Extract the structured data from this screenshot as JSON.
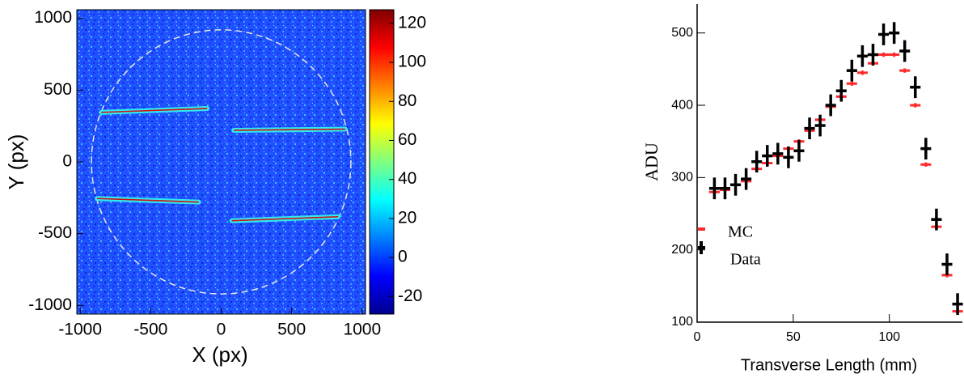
{
  "chart_data": [
    {
      "type": "heatmap",
      "xlabel": "X (px)",
      "ylabel": "Y (px)",
      "xlim": [
        -1024,
        1024
      ],
      "ylim": [
        -1060,
        1060
      ],
      "xticks": [
        -1000,
        -500,
        0,
        500,
        1000
      ],
      "yticks": [
        -1000,
        -500,
        0,
        500,
        1000
      ],
      "clim": [
        -29,
        127
      ],
      "cticks": [
        -20,
        0,
        20,
        40,
        60,
        80,
        100,
        120
      ],
      "circle_radius": 920,
      "tracks": [
        {
          "x": [
            -850,
            -100
          ],
          "y": [
            345,
            372
          ]
        },
        {
          "x": [
            90,
            880
          ],
          "y": [
            220,
            228
          ]
        },
        {
          "x": [
            -880,
            -160
          ],
          "y": [
            -255,
            -280
          ]
        },
        {
          "x": [
            75,
            830
          ],
          "y": [
            -410,
            -382
          ]
        }
      ]
    },
    {
      "type": "errorbar",
      "xlabel": "Transverse Length (mm)",
      "ylabel": "ADU",
      "xlim": [
        0,
        138
      ],
      "ylim": [
        100,
        540
      ],
      "xticks": [
        0,
        50,
        100
      ],
      "yticks": [
        100,
        200,
        300,
        400,
        500
      ],
      "x": [
        9,
        14.5,
        20,
        25.5,
        31,
        36.5,
        42,
        47.5,
        53,
        58.5,
        64,
        69.5,
        75,
        80.5,
        86,
        91.5,
        97,
        102.5,
        108,
        113.5,
        119,
        124.5,
        130,
        135.5
      ],
      "xerr": 2.75,
      "series": [
        {
          "name": "MC",
          "color": "#ff2a2a",
          "yerr": 3,
          "values": [
            280,
            283,
            290,
            295,
            312,
            320,
            330,
            340,
            350,
            365,
            380,
            398,
            412,
            430,
            445,
            458,
            470,
            470,
            448,
            400,
            318,
            232,
            165,
            115
          ]
        },
        {
          "name": "Data",
          "color": "#000000",
          "yerr": 15,
          "values": [
            285,
            285,
            290,
            298,
            322,
            330,
            333,
            328,
            337,
            368,
            372,
            400,
            420,
            448,
            468,
            470,
            498,
            500,
            475,
            425,
            340,
            242,
            180,
            125
          ]
        }
      ]
    }
  ]
}
